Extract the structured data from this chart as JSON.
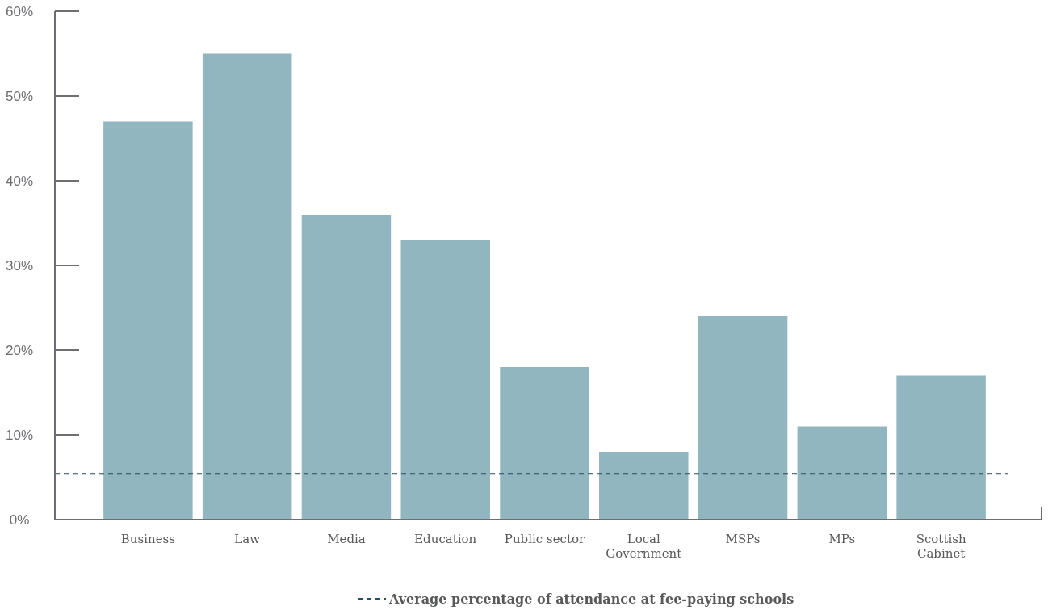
{
  "chart_data": {
    "type": "bar",
    "categories": [
      "Business",
      "Law",
      "Media",
      "Education",
      "Public sector",
      "Local Government",
      "MSPs",
      "MPs",
      "Scottish Cabinet"
    ],
    "values": [
      47,
      55,
      36,
      33,
      18,
      8,
      24,
      11,
      17
    ],
    "color": "#91b6bf",
    "ylim": [
      0,
      60
    ],
    "yticks": [
      {
        "value": 0,
        "label": "0%"
      },
      {
        "value": 10,
        "label": "10%"
      },
      {
        "value": 20,
        "label": "20%"
      },
      {
        "value": 30,
        "label": "30%"
      },
      {
        "value": 40,
        "label": "40%"
      },
      {
        "value": 50,
        "label": "50%"
      },
      {
        "value": 60,
        "label": "60%"
      }
    ],
    "ref_lines": [
      {
        "axis": "y",
        "value": 5.4,
        "label": "Average percentage of attendance at fee-paying schools",
        "color": "#254e62",
        "line_style": "dashed"
      }
    ],
    "grid": false,
    "legend": "bottom"
  }
}
